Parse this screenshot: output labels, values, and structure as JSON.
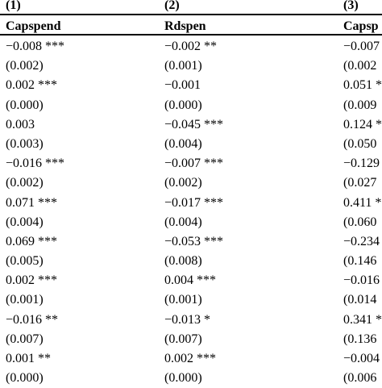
{
  "columns": [
    {
      "number": "(1)",
      "header": "Capspend",
      "cells": [
        "−0.008 ***",
        "(0.002)",
        "0.002 ***",
        "(0.000)",
        "0.003",
        "(0.003)",
        "−0.016 ***",
        "(0.002)",
        "0.071 ***",
        "(0.004)",
        "0.069 ***",
        "(0.005)",
        "0.002 ***",
        "(0.001)",
        "−0.016 **",
        "(0.007)",
        "0.001 **",
        "(0.000)"
      ]
    },
    {
      "number": "(2)",
      "header": "Rdspen",
      "cells": [
        "−0.002 **",
        "(0.001)",
        "−0.001",
        "(0.000)",
        "−0.045 ***",
        "(0.004)",
        "−0.007 ***",
        "(0.002)",
        "−0.017 ***",
        "(0.004)",
        "−0.053 ***",
        "(0.008)",
        "0.004 ***",
        "(0.001)",
        "−0.013 *",
        "(0.007)",
        "0.002 ***",
        "(0.000)"
      ]
    },
    {
      "number": "(3)",
      "header": "Capsp",
      "cells": [
        "−0.007",
        "(0.002",
        "0.051 *",
        "(0.009",
        "0.124 *",
        "(0.050",
        "−0.129",
        "(0.027",
        "0.411 *",
        "(0.060",
        "−0.234",
        "(0.146",
        "−0.016",
        "(0.014",
        "0.341 *",
        "(0.136",
        "−0.004",
        "(0.006"
      ]
    }
  ]
}
